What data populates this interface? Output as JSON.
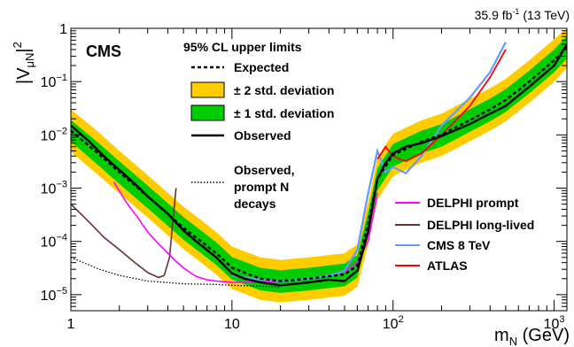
{
  "chart_data": {
    "type": "line",
    "top_right_label": {
      "lumi": "35.9 fb",
      "exp": "-1",
      "energy": " (13 TeV)"
    },
    "experiment_label": "CMS",
    "xlabel": {
      "main": "m",
      "sub": "N",
      "unit": " (GeV)"
    },
    "ylabel": {
      "main": "|V",
      "sub": "μN",
      "close": "|",
      "exp": "2"
    },
    "x_scale": "log",
    "y_scale": "log",
    "xlim": [
      1,
      1200
    ],
    "ylim": [
      5e-06,
      1
    ],
    "x_ticks": [
      {
        "value": 1,
        "base": "1",
        "exp": ""
      },
      {
        "value": 10,
        "base": "10",
        "exp": ""
      },
      {
        "value": 100,
        "base": "10",
        "exp": "2"
      },
      {
        "value": 1000,
        "base": "10",
        "exp": "3"
      }
    ],
    "y_ticks": [
      {
        "value": 1,
        "base": "1",
        "exp": ""
      },
      {
        "value": 0.1,
        "base": "10",
        "exp": "−1"
      },
      {
        "value": 0.01,
        "base": "10",
        "exp": "−2"
      },
      {
        "value": 0.001,
        "base": "10",
        "exp": "−3"
      },
      {
        "value": 0.0001,
        "base": "10",
        "exp": "−4"
      },
      {
        "value": 1e-05,
        "base": "10",
        "exp": "−5"
      }
    ],
    "legend": {
      "title": "95% CL upper limits",
      "expected": "Expected",
      "band2": "± 2 std. deviation",
      "band1": "± 1 std. deviation",
      "observed": "Observed",
      "prompt": [
        "Observed,",
        "prompt N",
        "decays"
      ],
      "placement": "top-center"
    },
    "colors": {
      "band2": "#ffcc00",
      "band1": "#00cc00",
      "delphi_prompt": "#ff00ff",
      "delphi_long": "#663333",
      "cms8": "#6699ff",
      "atlas": "#ff0000"
    },
    "series": [
      {
        "key": "expected",
        "name": "Expected",
        "x": [
          1,
          1.5,
          2,
          3,
          5,
          8,
          10,
          15,
          20,
          30,
          50,
          60,
          70,
          80,
          90,
          100,
          150,
          200,
          300,
          400,
          500,
          700,
          1000,
          1200
        ],
        "y": [
          0.012,
          0.0043,
          0.002,
          0.0007,
          0.00018,
          6e-05,
          3.2e-05,
          2e-05,
          1.8e-05,
          2e-05,
          2.4e-05,
          3.5e-05,
          0.00022,
          0.0015,
          0.0026,
          0.0042,
          0.0075,
          0.01,
          0.019,
          0.03,
          0.045,
          0.1,
          0.25,
          0.45
        ],
        "band1": {
          "lo": [
            0.0075,
            0.0026,
            0.0012,
            0.00042,
            0.000108,
            3.6e-05,
            1.92e-05,
            1.2e-05,
            1.08e-05,
            1.2e-05,
            1.44e-05,
            2.1e-05,
            0.000132,
            0.0009,
            0.00156,
            0.00252,
            0.0045,
            0.006,
            0.0114,
            0.018,
            0.027,
            0.06,
            0.15,
            0.27
          ],
          "hi": [
            0.019,
            0.0069,
            0.0032,
            0.00112,
            0.000288,
            9.6e-05,
            5.12e-05,
            3.2e-05,
            2.88e-05,
            3.2e-05,
            3.84e-05,
            5.6e-05,
            0.000352,
            0.0024,
            0.00416,
            0.00672,
            0.012,
            0.016,
            0.0304,
            0.048,
            0.072,
            0.16,
            0.4,
            0.72
          ]
        },
        "band2": {
          "lo": [
            0.0048,
            0.0017,
            0.0008,
            0.00028,
            7.2e-05,
            2.4e-05,
            1.28e-05,
            8e-06,
            7.2e-06,
            8e-06,
            9.6e-06,
            1.4e-05,
            8.8e-05,
            0.0006,
            0.00104,
            0.00168,
            0.003,
            0.004,
            0.0076,
            0.012,
            0.018,
            0.04,
            0.1,
            0.18
          ],
          "hi": [
            0.03,
            0.011,
            0.005,
            0.00175,
            0.00045,
            0.00015,
            8e-05,
            5e-05,
            4.5e-05,
            5e-05,
            6e-05,
            8.75e-05,
            0.00055,
            0.00375,
            0.0065,
            0.0105,
            0.01875,
            0.025,
            0.0475,
            0.075,
            0.1125,
            0.25,
            0.625,
            1
          ]
        }
      },
      {
        "key": "observed",
        "name": "Observed",
        "x": [
          1,
          1.3,
          1.6,
          2,
          2.5,
          3,
          4,
          5,
          6,
          8,
          10,
          12,
          15,
          20,
          25,
          30,
          40,
          50,
          55,
          60,
          70,
          80,
          90,
          100,
          120,
          150,
          200,
          300,
          400,
          500,
          700,
          1000,
          1200
        ],
        "y": [
          0.015,
          0.0075,
          0.004,
          0.0022,
          0.0012,
          0.0007,
          0.00033,
          0.00016,
          0.0001,
          5e-05,
          2.5e-05,
          2e-05,
          1.7e-05,
          1.5e-05,
          1.6e-05,
          1.7e-05,
          1.9e-05,
          1.8e-05,
          2.3e-05,
          2.8e-05,
          0.00015,
          0.0015,
          0.003,
          0.0045,
          0.006,
          0.007,
          0.0095,
          0.016,
          0.025,
          0.035,
          0.08,
          0.2,
          0.5
        ]
      },
      {
        "key": "prompt",
        "name": "Observed, prompt N decays",
        "x": [
          1,
          1.2,
          1.5,
          2,
          3,
          5,
          8,
          10,
          15,
          20
        ],
        "y": [
          5e-05,
          4e-05,
          3e-05,
          2.3e-05,
          1.8e-05,
          1.6e-05,
          1.55e-05,
          1.5e-05,
          1.45e-05,
          1.4e-05
        ]
      },
      {
        "key": "delphi_prompt",
        "name": "DELPHI prompt",
        "x": [
          1.85,
          2.2,
          2.6,
          3,
          3.5,
          4,
          4.5,
          5,
          5.5,
          6,
          7,
          8,
          10,
          15,
          20,
          30,
          40,
          50,
          60,
          70,
          80
        ],
        "y": [
          0.0013,
          0.00055,
          0.00028,
          0.00015,
          9e-05,
          6e-05,
          4.2e-05,
          3.2e-05,
          2.6e-05,
          2.2e-05,
          1.9e-05,
          1.8e-05,
          1.7e-05,
          1.7e-05,
          1.8e-05,
          2e-05,
          2.3e-05,
          2.7e-05,
          4e-05,
          0.0001,
          0.0008
        ]
      },
      {
        "key": "delphi_long",
        "name": "DELPHI long-lived",
        "x": [
          1,
          1.3,
          1.6,
          2,
          2.5,
          3,
          3.5,
          3.8,
          4.1,
          4.3,
          4.5
        ],
        "y": [
          0.0005,
          0.00023,
          0.00012,
          7e-05,
          4e-05,
          2.6e-05,
          2.1e-05,
          2.3e-05,
          5e-05,
          0.00025,
          0.001
        ]
      },
      {
        "key": "cms8",
        "name": "CMS 8 TeV",
        "x": [
          10,
          15,
          20,
          30,
          40,
          50,
          60,
          70,
          80,
          90,
          100,
          120,
          150,
          200,
          300,
          400,
          500
        ],
        "y": [
          2.3e-05,
          1.9e-05,
          1.8e-05,
          2e-05,
          2.3e-05,
          2.8e-05,
          7e-05,
          0.0008,
          0.005,
          0.002,
          0.0025,
          0.0019,
          0.004,
          0.015,
          0.05,
          0.15,
          0.55
        ]
      },
      {
        "key": "atlas",
        "name": "ATLAS",
        "x": [
          80,
          90,
          100,
          110,
          120,
          150,
          200,
          300,
          400,
          500
        ],
        "y": [
          0.0035,
          0.006,
          0.004,
          0.0035,
          0.0032,
          0.0045,
          0.01,
          0.035,
          0.12,
          0.4
        ]
      }
    ]
  }
}
